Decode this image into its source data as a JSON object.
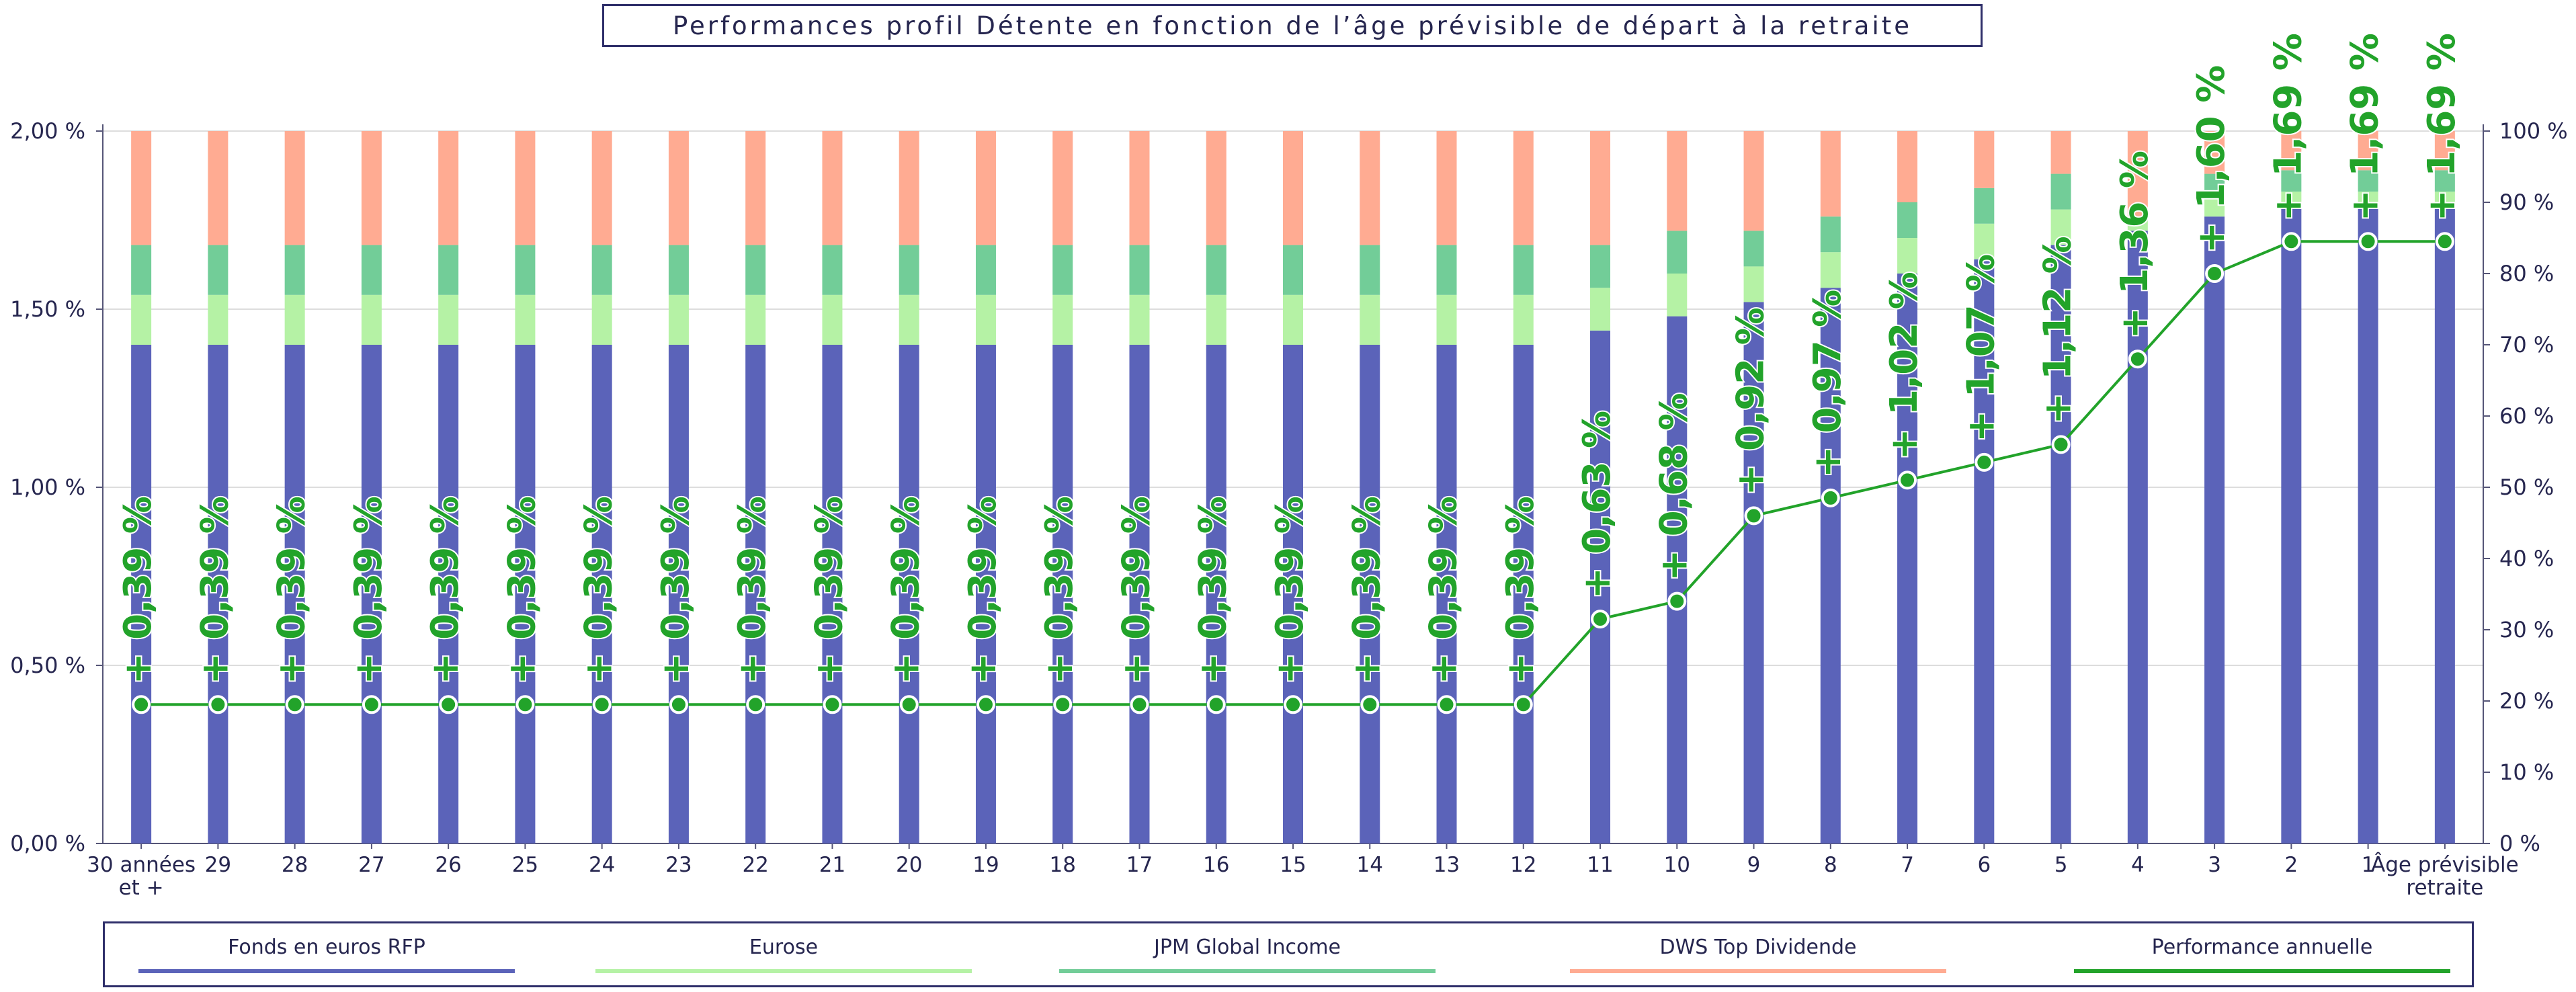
{
  "chart_data": {
    "type": "bar",
    "stacked": true,
    "title": "Performances profil Détente en fonction de l’âge prévisible de départ à la retraite",
    "categories": [
      "30 années et +",
      "29",
      "28",
      "27",
      "26",
      "25",
      "24",
      "23",
      "22",
      "21",
      "20",
      "19",
      "18",
      "17",
      "16",
      "15",
      "14",
      "13",
      "12",
      "11",
      "10",
      "9",
      "8",
      "7",
      "6",
      "5",
      "4",
      "3",
      "2",
      "1",
      "Âge prévisible retraite"
    ],
    "y_left": {
      "ticks": [
        "0,00 %",
        "0,50 %",
        "1,00 %",
        "1,50 %",
        "2,00 %"
      ],
      "ylim": [
        0,
        2
      ]
    },
    "y_right": {
      "ticks": [
        "0 %",
        "10 %",
        "20 %",
        "30 %",
        "40 %",
        "50 %",
        "60 %",
        "70 %",
        "80 %",
        "90 %",
        "100 %"
      ],
      "ylim": [
        0,
        100
      ]
    },
    "series": [
      {
        "name": "Fonds en euros RFP",
        "axis": "right",
        "color": "#5b63b9",
        "values": [
          70,
          70,
          70,
          70,
          70,
          70,
          70,
          70,
          70,
          70,
          70,
          70,
          70,
          70,
          70,
          70,
          70,
          70,
          70,
          72,
          74,
          76,
          78,
          80,
          82,
          84,
          86,
          88,
          90,
          90,
          90
        ]
      },
      {
        "name": "Eurose",
        "axis": "right",
        "color": "#b5f2a5",
        "values": [
          7,
          7,
          7,
          7,
          7,
          7,
          7,
          7,
          7,
          7,
          7,
          7,
          7,
          7,
          7,
          7,
          7,
          7,
          7,
          6,
          6,
          5,
          5,
          5,
          5,
          5,
          2,
          3,
          1.5,
          1.5,
          1.5
        ]
      },
      {
        "name": "JPM Global Income",
        "axis": "right",
        "color": "#72cd98",
        "values": [
          7,
          7,
          7,
          7,
          7,
          7,
          7,
          7,
          7,
          7,
          7,
          7,
          7,
          7,
          7,
          7,
          7,
          7,
          7,
          6,
          6,
          5,
          5,
          5,
          5,
          5,
          0,
          3,
          3,
          3,
          3
        ]
      },
      {
        "name": "DWS Top Dividende",
        "axis": "right",
        "color": "#ffab92",
        "values": [
          16,
          16,
          16,
          16,
          16,
          16,
          16,
          16,
          16,
          16,
          16,
          16,
          16,
          16,
          16,
          16,
          16,
          16,
          16,
          16,
          14,
          14,
          12,
          10,
          8,
          6,
          12,
          6,
          5.5,
          5.5,
          5.5
        ]
      },
      {
        "name": "Performance annuelle",
        "axis": "left",
        "type": "line",
        "color": "#22a32a",
        "values": [
          0.39,
          0.39,
          0.39,
          0.39,
          0.39,
          0.39,
          0.39,
          0.39,
          0.39,
          0.39,
          0.39,
          0.39,
          0.39,
          0.39,
          0.39,
          0.39,
          0.39,
          0.39,
          0.39,
          0.63,
          0.68,
          0.92,
          0.97,
          1.02,
          1.07,
          1.12,
          1.36,
          1.6,
          1.69,
          1.69,
          1.69
        ],
        "labels": [
          "+ 0,39 %",
          "+ 0,39 %",
          "+ 0,39 %",
          "+ 0,39 %",
          "+ 0,39 %",
          "+ 0,39 %",
          "+ 0,39 %",
          "+ 0,39 %",
          "+ 0,39 %",
          "+ 0,39 %",
          "+ 0,39 %",
          "+ 0,39 %",
          "+ 0,39 %",
          "+ 0,39 %",
          "+ 0,39 %",
          "+ 0,39 %",
          "+ 0,39 %",
          "+ 0,39 %",
          "+ 0,39 %",
          "+ 0,63 %",
          "+ 0,68 %",
          "+ 0,92 %",
          "+ 0,97 %",
          "+ 1,02 %",
          "+ 1,07 %",
          "+ 1,12 %",
          "+ 1,36 %",
          "+ 1,60 %",
          "+ 1,69 %",
          "+ 1,69 %",
          "+ 1,69 %"
        ]
      }
    ],
    "grid": true,
    "legend_position": "bottom"
  }
}
